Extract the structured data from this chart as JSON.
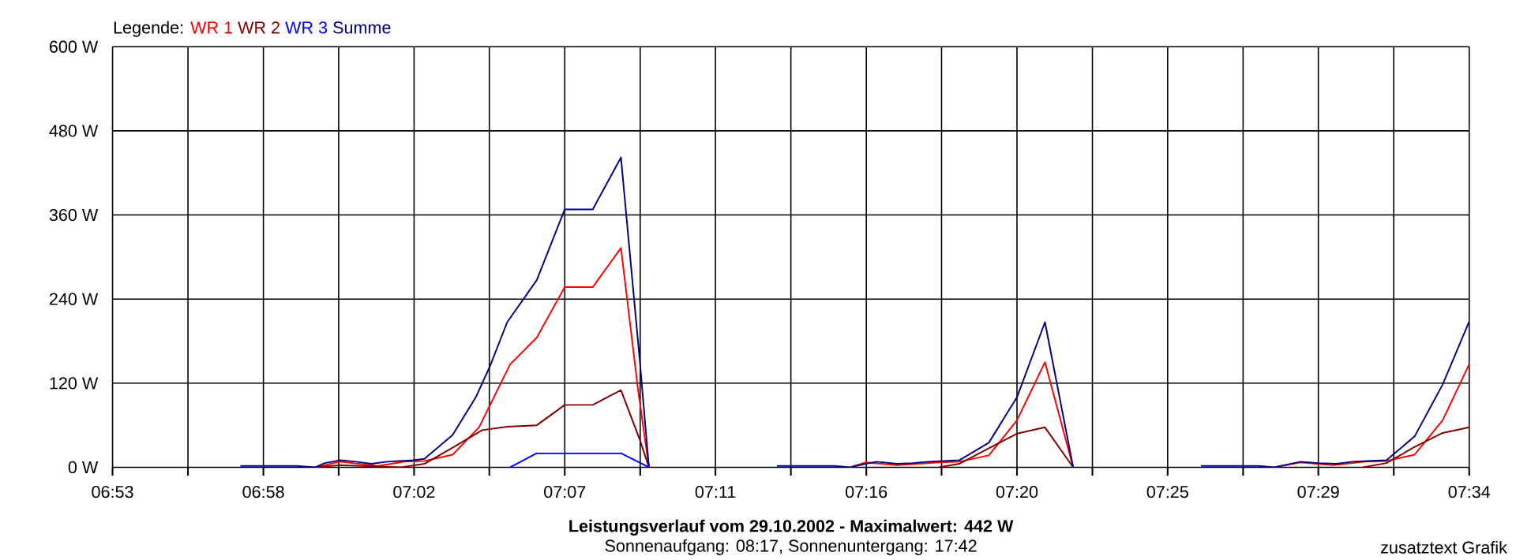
{
  "chart_data": {
    "type": "line",
    "title": "Leistungsverlauf vom 29.10.2002 - Maximalwert: 442 W",
    "subtitle": "Sonnenaufgang: 08:17, Sonnenuntergang: 17:42",
    "annotations": [
      "zusatztext Grafik"
    ],
    "legend_title": "Legende:",
    "legend": "top left",
    "grid": true,
    "xlim": [
      6.8833,
      7.5667
    ],
    "ylim": [
      0,
      600
    ],
    "xticks": [
      {
        "value": 6.8833,
        "label": "06:53"
      },
      {
        "value": 6.9213,
        "label": null
      },
      {
        "value": 6.9593,
        "label": "06:58"
      },
      {
        "value": 6.9972,
        "label": null
      },
      {
        "value": 7.0352,
        "label": "07:02"
      },
      {
        "value": 7.0731,
        "label": null
      },
      {
        "value": 7.1111,
        "label": "07:07"
      },
      {
        "value": 7.1491,
        "label": null
      },
      {
        "value": 7.187,
        "label": "07:11"
      },
      {
        "value": 7.225,
        "label": null
      },
      {
        "value": 7.263,
        "label": "07:16"
      },
      {
        "value": 7.3009,
        "label": null
      },
      {
        "value": 7.3389,
        "label": "07:20"
      },
      {
        "value": 7.3769,
        "label": null
      },
      {
        "value": 7.4148,
        "label": "07:25"
      },
      {
        "value": 7.4528,
        "label": null
      },
      {
        "value": 7.4907,
        "label": "07:29"
      },
      {
        "value": 7.5287,
        "label": null
      },
      {
        "value": 7.5667,
        "label": "07:34"
      }
    ],
    "yticks": [
      {
        "value": 0,
        "label": "0 W"
      },
      {
        "value": 120,
        "label": "120 W"
      },
      {
        "value": 240,
        "label": "240 W"
      },
      {
        "value": 360,
        "label": "360 W"
      },
      {
        "value": 480,
        "label": "480 W"
      },
      {
        "value": 600,
        "label": "600 W"
      }
    ],
    "series": [
      {
        "name": "WR 1",
        "color": "#ff0000",
        "x": [
          6.9854,
          6.998,
          7.0169,
          7.0302,
          7.0404,
          7.0546,
          7.0679,
          7.0836,
          7.097,
          7.1111,
          7.1252,
          7.1394,
          7.148,
          7.1535,
          7.18,
          7.2548,
          7.2627,
          7.2784,
          7.2996,
          7.3098,
          7.3247,
          7.3389,
          7.353,
          7.3672,
          7.4,
          7.4685,
          7.4818,
          7.4983,
          7.514,
          7.525,
          7.5392,
          7.5533,
          7.5667
        ],
        "values": [
          0,
          8,
          2,
          8,
          9,
          18,
          57,
          147,
          185,
          257,
          257,
          313,
          111,
          0,
          null,
          0,
          7,
          3,
          7,
          8,
          17,
          67,
          150,
          0,
          null,
          0,
          7,
          3,
          8,
          9,
          18,
          67,
          147
        ]
      },
      {
        "name": "WR 2",
        "color": "#800000",
        "x": [
          6.9854,
          6.998,
          7.0169,
          7.0286,
          7.0404,
          7.0546,
          7.0695,
          7.0821,
          7.097,
          7.1111,
          7.1252,
          7.1394,
          7.1488,
          7.1535,
          7.18,
          7.2996,
          7.3098,
          7.3247,
          7.3389,
          7.353,
          7.3672,
          7.4,
          7.5133,
          7.525,
          7.5392,
          7.5533,
          7.5667
        ],
        "values": [
          0,
          3,
          1,
          0,
          5,
          28,
          53,
          58,
          60,
          89,
          89,
          110,
          40,
          0,
          null,
          0,
          5,
          27,
          48,
          57,
          0,
          null,
          0,
          6,
          29,
          49,
          57
        ]
      },
      {
        "name": "WR 3",
        "color": "#0000ff",
        "x": [
          7.0836,
          7.097,
          7.1111,
          7.1394,
          7.1535
        ],
        "values": [
          0,
          20,
          20,
          20,
          0
        ]
      },
      {
        "name": "Summe",
        "color": "#000080",
        "x": [
          6.9477,
          6.976,
          6.9854,
          6.9902,
          6.998,
          7.0059,
          7.0137,
          7.0216,
          7.0349,
          7.0404,
          7.0546,
          7.0663,
          7.0734,
          7.0821,
          7.097,
          7.1111,
          7.1252,
          7.1394,
          7.1488,
          7.1535,
          7.18,
          7.2179,
          7.247,
          7.2548,
          7.2627,
          7.2682,
          7.2784,
          7.2863,
          7.2941,
          7.3098,
          7.3247,
          7.3389,
          7.353,
          7.3672,
          7.4,
          7.4316,
          7.4606,
          7.4685,
          7.4818,
          7.4905,
          7.4999,
          7.5078,
          7.5156,
          7.525,
          7.5392,
          7.5533,
          7.5667
        ],
        "values": [
          2,
          2,
          0,
          6,
          10,
          8,
          5,
          8,
          10,
          12,
          46,
          100,
          144,
          207,
          267,
          368,
          368,
          442,
          155,
          0,
          null,
          2,
          2,
          0,
          5,
          8,
          5,
          6,
          8,
          10,
          35,
          100,
          207,
          0,
          null,
          2,
          2,
          0,
          8,
          6,
          5,
          8,
          9,
          10,
          44,
          118,
          208
        ]
      }
    ]
  }
}
